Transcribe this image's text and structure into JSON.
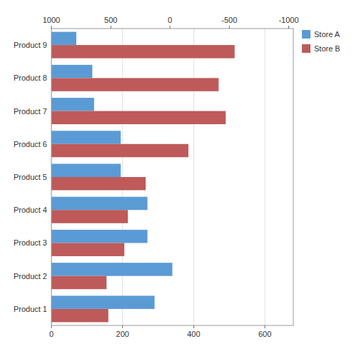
{
  "chart_data": {
    "type": "bar",
    "orientation": "horizontal",
    "categories": [
      "Product 1",
      "Product 2",
      "Product 3",
      "Product 4",
      "Product 5",
      "Product 6",
      "Product 7",
      "Product 8",
      "Product 9"
    ],
    "series": [
      {
        "name": "Store A",
        "color": "#5B9BD5",
        "values": [
          290,
          340,
          270,
          270,
          195,
          195,
          120,
          115,
          70
        ]
      },
      {
        "name": "Store B",
        "color": "#BE5A5A",
        "values": [
          160,
          155,
          205,
          215,
          265,
          385,
          490,
          470,
          515
        ]
      }
    ],
    "xlim": [
      0,
      680
    ],
    "xticks": [
      0,
      200,
      400,
      600
    ],
    "x2lim": [
      0,
      680
    ],
    "x2ticks": [
      {
        "value": 0,
        "label": "1000"
      },
      {
        "value": 167,
        "label": "500"
      },
      {
        "value": 333,
        "label": "0"
      },
      {
        "value": 500,
        "label": "-500"
      },
      {
        "value": 667,
        "label": "-1000"
      }
    ],
    "grid": true,
    "legend": "upper right"
  }
}
